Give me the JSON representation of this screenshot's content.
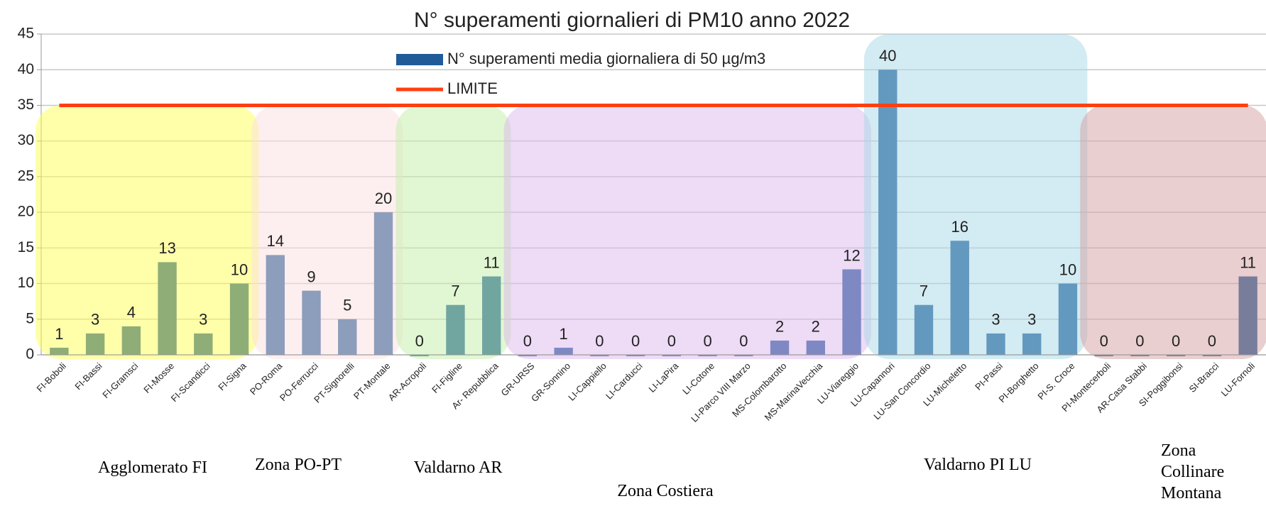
{
  "chart_data": {
    "type": "bar",
    "title": "N° superamenti giornalieri di PM10 anno 2022",
    "categories": [
      "FI-Boboli",
      "FI-Bassi",
      "FI-Gramsci",
      "FI-Mosse",
      "FI-Scandicci",
      "FI-Signa",
      "PO-Roma",
      "PO-Ferrucci",
      "PT-Signorelli",
      "PT-Montale",
      "AR-Acropoli",
      "FI-Figline",
      "Ar- Repubblica",
      "GR-URSS",
      "GR-Sonnino",
      "LI-Cappiello",
      "LI-Carducci",
      "LI-LaPira",
      "LI-Cotone",
      "LI-Parco VIII Marzo",
      "MS-Colombarotto",
      "MS-MarinaVecchia",
      "LU-Viareggio",
      "LU-Capannori",
      "LU-San Concordio",
      "LU-Micheletto",
      "PI-Passi",
      "PI-Borghetto",
      "PI-S. Croce",
      "PI-Montecerboli",
      "AR-Casa Stabbi",
      "SI-Poggibonsi",
      "SI-Bracci",
      "LU-Fornoli"
    ],
    "series": [
      {
        "name": "N° superamenti media giornaliera di 50 µg/m3",
        "color": "#1f5b99",
        "values": [
          1,
          3,
          4,
          13,
          3,
          10,
          14,
          9,
          5,
          20,
          0,
          7,
          11,
          0,
          1,
          0,
          0,
          0,
          0,
          0,
          2,
          2,
          12,
          40,
          7,
          16,
          3,
          3,
          10,
          0,
          0,
          0,
          0,
          11
        ]
      },
      {
        "name": "LIMITE",
        "type": "line",
        "color": "#ff4010",
        "values": [
          35,
          35,
          35,
          35,
          35,
          35,
          35,
          35,
          35,
          35,
          35,
          35,
          35,
          35,
          35,
          35,
          35,
          35,
          35,
          35,
          35,
          35,
          35,
          35,
          35,
          35,
          35,
          35,
          35,
          35,
          35,
          35,
          35,
          35
        ]
      }
    ],
    "ylim": [
      0,
      45
    ],
    "yticks": [
      0,
      5,
      10,
      15,
      20,
      25,
      30,
      35,
      40,
      45
    ],
    "grid": true,
    "zones": [
      {
        "label": [
          "Agglomerato FI"
        ],
        "color": "#ffff55"
      },
      {
        "label": [
          "Zona PO-PT"
        ],
        "color": "#fbe0e0"
      },
      {
        "label": [
          "Valdarno AR"
        ],
        "color": "#c4f0a8"
      },
      {
        "label": [
          "Zona Costiera"
        ],
        "color": "#ddb8ee"
      },
      {
        "label": [
          "Valdarno PI LU"
        ],
        "color": "#a8d8e6"
      },
      {
        "label": [
          "Zona",
          "Collinare",
          "Montana"
        ],
        "color": "#d4a0a0"
      }
    ]
  }
}
